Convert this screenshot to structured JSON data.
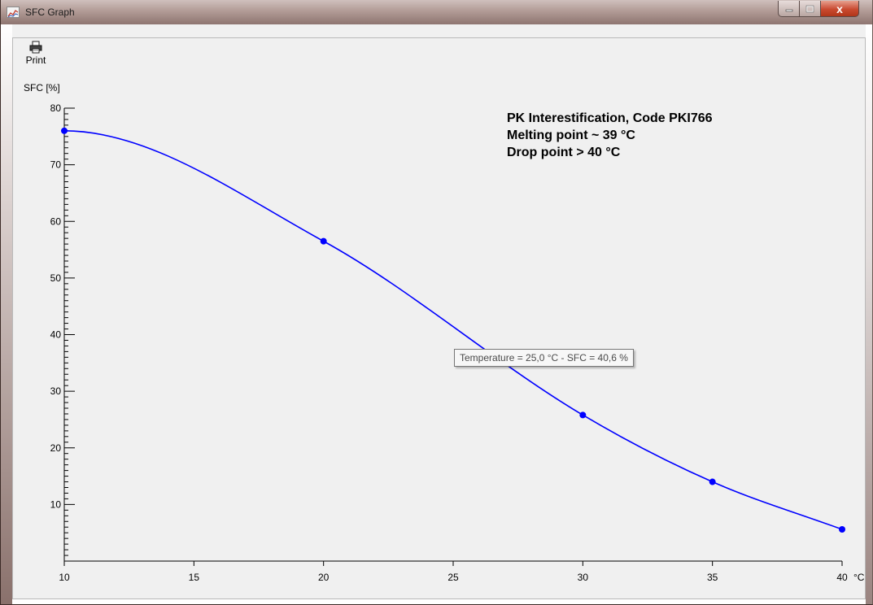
{
  "window": {
    "title": "SFC Graph",
    "buttons": {
      "minimize": "minimize",
      "maximize": "maximize",
      "close": "x"
    }
  },
  "toolbar": {
    "print_label": "Print"
  },
  "tooltip": {
    "text": "Temperature = 25,0 °C - SFC = 40,6 %"
  },
  "chart_data": {
    "type": "line",
    "ylabel": "SFC [%]",
    "xunit": "°C",
    "xlim": [
      10,
      40
    ],
    "ylim": [
      0,
      80
    ],
    "xticks": [
      10,
      15,
      20,
      25,
      30,
      35,
      40
    ],
    "yticks": [
      10,
      20,
      30,
      40,
      50,
      60,
      70,
      80
    ],
    "annotation": [
      "PK Interestification, Code PKI766",
      "Melting point ~ 39 °C",
      "Drop point > 40 °C"
    ],
    "series": [
      {
        "x": [
          10,
          20,
          30,
          35,
          40
        ],
        "y": [
          76,
          56.5,
          25.8,
          14,
          5.6
        ],
        "color": "#0000ff"
      }
    ],
    "grid": false,
    "legend": "none"
  }
}
